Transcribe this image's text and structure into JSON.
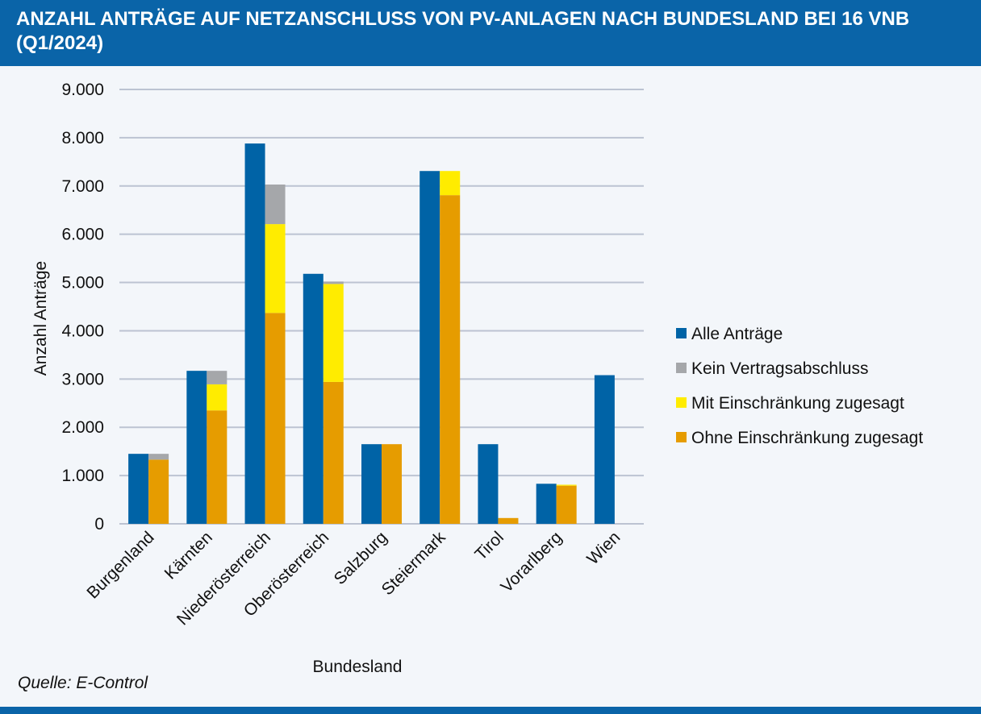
{
  "header": {
    "title": "ANZAHL ANTRÄGE AUF NETZANSCHLUSS VON PV-ANLAGEN NACH BUNDESLAND BEI 16 VNB (Q1/2024)"
  },
  "source": "Quelle: E-Control",
  "chart_data": {
    "type": "bar",
    "title": "ANZAHL ANTRÄGE AUF NETZANSCHLUSS VON PV-ANLAGEN NACH BUNDESLAND BEI 16 VNB (Q1/2024)",
    "xlabel": "Bundesland",
    "ylabel": "Anzahl Anträge",
    "ylim": [
      0,
      9000
    ],
    "yticks": [
      "0",
      "1.000",
      "2.000",
      "3.000",
      "4.000",
      "5.000",
      "6.000",
      "7.000",
      "8.000",
      "9.000"
    ],
    "grid": true,
    "legend_position": "right",
    "categories": [
      "Burgenland",
      "Kärnten",
      "Niederösterreich",
      "Oberösterreich",
      "Salzburg",
      "Steiermark",
      "Tirol",
      "Vorarlberg",
      "Wien"
    ],
    "series": [
      {
        "name": "Alle Anträge",
        "stack": "a",
        "color": "#0063a6",
        "values": [
          1450,
          3170,
          7880,
          5180,
          1650,
          7310,
          1650,
          830,
          3080
        ]
      },
      {
        "name": "Kein Vertragsabschluss",
        "stack": "b",
        "color": "#a5a7aa",
        "values": [
          120,
          280,
          820,
          50,
          0,
          0,
          0,
          0,
          0
        ]
      },
      {
        "name": "Mit Einschränkung zugesagt",
        "stack": "b",
        "color": "#ffec00",
        "values": [
          0,
          540,
          1840,
          2030,
          0,
          500,
          0,
          20,
          0
        ]
      },
      {
        "name": "Ohne Einschränkung zugesagt",
        "stack": "b",
        "color": "#e69c00",
        "values": [
          1330,
          2350,
          4370,
          2940,
          1650,
          6810,
          120,
          790,
          0
        ]
      }
    ]
  }
}
